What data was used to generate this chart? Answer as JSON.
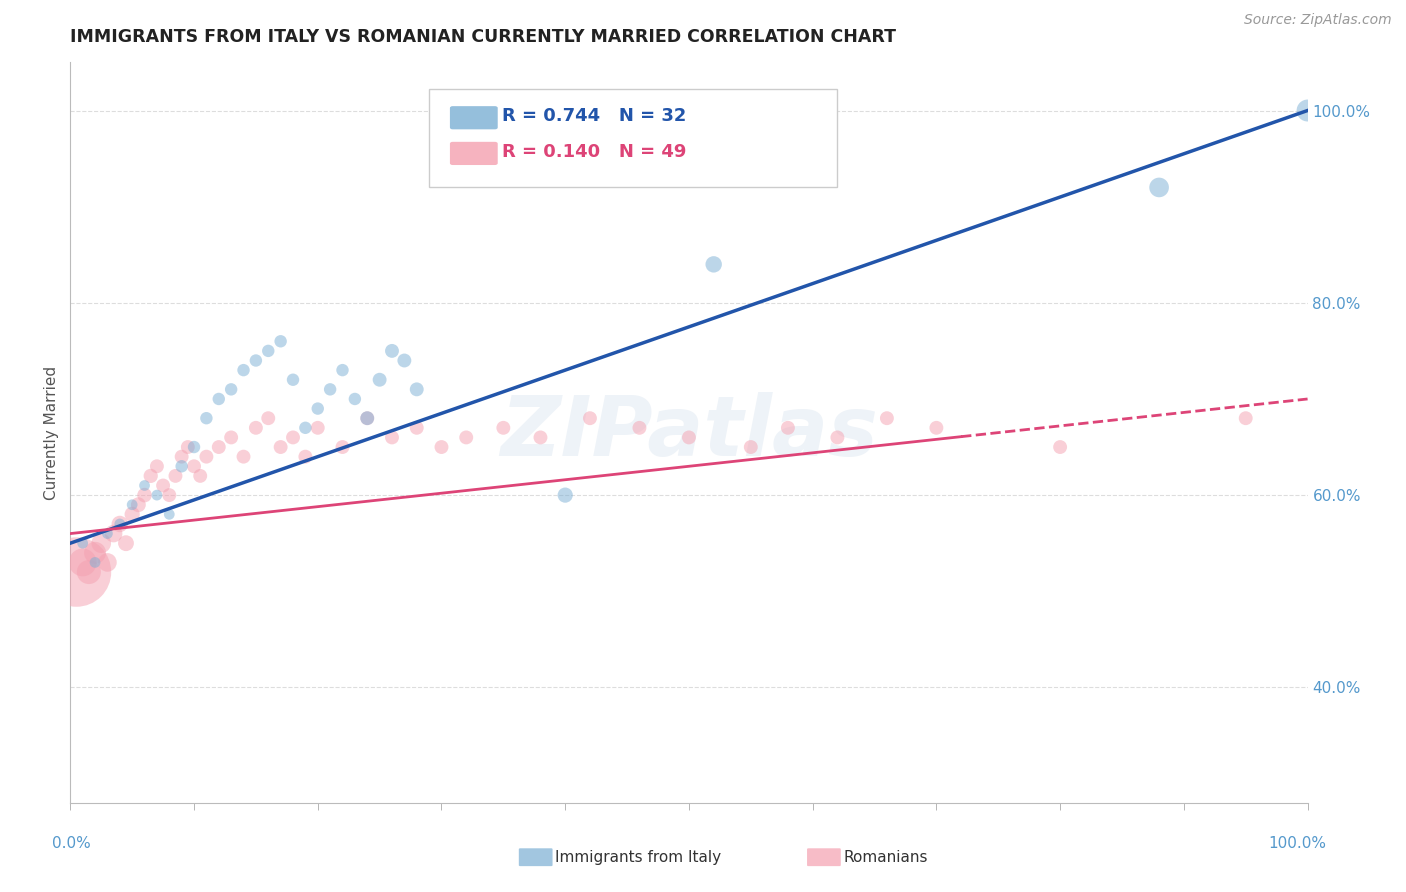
{
  "title": "IMMIGRANTS FROM ITALY VS ROMANIAN CURRENTLY MARRIED CORRELATION CHART",
  "source": "Source: ZipAtlas.com",
  "ylabel": "Currently Married",
  "italy_R": 0.744,
  "italy_N": 32,
  "romania_R": 0.14,
  "romania_N": 49,
  "italy_color": "#7BAFD4",
  "romania_color": "#F4A0B0",
  "italy_line_color": "#2255AA",
  "romania_line_color": "#DD4477",
  "watermark": "ZIPatlas",
  "background_color": "#FFFFFF",
  "grid_color": "#DDDDDD",
  "axis_label_color": "#5599CC",
  "title_color": "#222222",
  "italy_x": [
    1,
    2,
    3,
    4,
    5,
    6,
    7,
    8,
    9,
    10,
    11,
    12,
    13,
    14,
    15,
    16,
    17,
    18,
    19,
    20,
    21,
    22,
    23,
    24,
    25,
    26,
    27,
    28,
    40,
    52,
    88,
    100
  ],
  "italy_y": [
    55,
    53,
    56,
    57,
    59,
    61,
    60,
    58,
    63,
    65,
    68,
    70,
    71,
    73,
    74,
    75,
    76,
    72,
    67,
    69,
    71,
    73,
    70,
    68,
    72,
    75,
    74,
    71,
    60,
    84,
    92,
    100
  ],
  "italy_sizes": [
    60,
    60,
    60,
    60,
    60,
    60,
    60,
    60,
    80,
    80,
    80,
    80,
    80,
    80,
    80,
    80,
    80,
    80,
    80,
    80,
    80,
    80,
    80,
    100,
    100,
    100,
    100,
    100,
    120,
    140,
    200,
    250
  ],
  "romania_x": [
    0.5,
    1,
    1.5,
    2,
    2.5,
    3,
    3.5,
    4,
    4.5,
    5,
    5.5,
    6,
    6.5,
    7,
    7.5,
    8,
    8.5,
    9,
    9.5,
    10,
    10.5,
    11,
    12,
    13,
    14,
    15,
    16,
    17,
    18,
    19,
    20,
    22,
    24,
    26,
    28,
    30,
    32,
    35,
    38,
    42,
    46,
    50,
    55,
    58,
    62,
    66,
    70,
    80,
    95
  ],
  "romania_y": [
    52,
    53,
    52,
    54,
    55,
    53,
    56,
    57,
    55,
    58,
    59,
    60,
    62,
    63,
    61,
    60,
    62,
    64,
    65,
    63,
    62,
    64,
    65,
    66,
    64,
    67,
    68,
    65,
    66,
    64,
    67,
    65,
    68,
    66,
    67,
    65,
    66,
    67,
    66,
    68,
    67,
    66,
    65,
    67,
    66,
    68,
    67,
    65,
    68
  ],
  "romania_sizes": [
    2500,
    400,
    300,
    250,
    200,
    180,
    160,
    140,
    130,
    120,
    115,
    110,
    105,
    100,
    100,
    100,
    100,
    100,
    100,
    100,
    100,
    100,
    100,
    100,
    100,
    100,
    100,
    100,
    100,
    100,
    100,
    100,
    100,
    100,
    100,
    100,
    100,
    100,
    100,
    100,
    100,
    100,
    100,
    100,
    100,
    100,
    100,
    100,
    100
  ],
  "xmin": 0.0,
  "xmax": 100.0,
  "ymin": 28.0,
  "ymax": 105.0,
  "yticks": [
    40.0,
    60.0,
    80.0,
    100.0
  ],
  "ytick_labels": [
    "40.0%",
    "60.0%",
    "80.0%",
    "100.0%"
  ],
  "italy_line_x0": 0,
  "italy_line_x1": 100,
  "italy_line_y0": 55,
  "italy_line_y1": 100,
  "romania_line_x0": 0,
  "romania_line_x1": 100,
  "romania_line_y0": 56,
  "romania_line_y1": 70
}
